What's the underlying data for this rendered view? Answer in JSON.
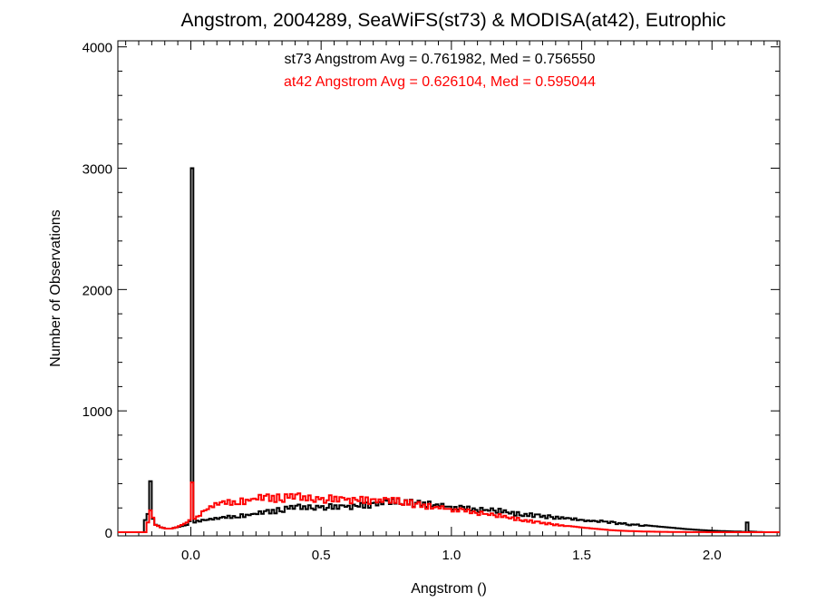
{
  "chart_data": {
    "type": "histogram",
    "title": "Angstrom, 2004289, SeaWiFS(st73) & MODISA(at42), Eutrophic",
    "xlabel": "Angstrom ()",
    "ylabel": "Number of Observations",
    "xlim": [
      -0.28,
      2.26
    ],
    "ylim": [
      -30,
      4050
    ],
    "xticks": [
      0.0,
      0.5,
      1.0,
      1.5,
      2.0
    ],
    "xtick_labels": [
      "0.0",
      "0.5",
      "1.0",
      "1.5",
      "2.0"
    ],
    "yticks": [
      0,
      1000,
      2000,
      3000,
      4000
    ],
    "ytick_labels": [
      "0",
      "1000",
      "2000",
      "3000",
      "4000"
    ],
    "annotations": [
      {
        "text": "st73 Angstrom Avg = 0.761982, Med = 0.756550",
        "color": "#000000"
      },
      {
        "text": "at42 Angstrom Avg = 0.626104, Med = 0.595044",
        "color": "#ff0000"
      }
    ],
    "series": [
      {
        "label": "st73",
        "color": "#000000",
        "bin_width": 0.01,
        "points": [
          [
            -0.18,
            100
          ],
          [
            -0.17,
            150
          ],
          [
            -0.16,
            420
          ],
          [
            -0.15,
            110
          ],
          [
            -0.14,
            70
          ],
          [
            -0.12,
            40
          ],
          [
            -0.1,
            30
          ],
          [
            -0.08,
            30
          ],
          [
            -0.06,
            40
          ],
          [
            -0.04,
            50
          ],
          [
            -0.02,
            60
          ],
          [
            -0.01,
            90
          ],
          [
            0.0,
            3000
          ],
          [
            0.01,
            90
          ],
          [
            0.05,
            110
          ],
          [
            0.1,
            120
          ],
          [
            0.15,
            140
          ],
          [
            0.2,
            150
          ],
          [
            0.25,
            160
          ],
          [
            0.3,
            180
          ],
          [
            0.35,
            200
          ],
          [
            0.4,
            215
          ],
          [
            0.45,
            220
          ],
          [
            0.5,
            225
          ],
          [
            0.55,
            220
          ],
          [
            0.6,
            225
          ],
          [
            0.65,
            235
          ],
          [
            0.7,
            250
          ],
          [
            0.75,
            260
          ],
          [
            0.8,
            265
          ],
          [
            0.85,
            255
          ],
          [
            0.9,
            250
          ],
          [
            0.95,
            235
          ],
          [
            1.0,
            220
          ],
          [
            1.05,
            205
          ],
          [
            1.1,
            200
          ],
          [
            1.15,
            190
          ],
          [
            1.2,
            180
          ],
          [
            1.25,
            160
          ],
          [
            1.3,
            150
          ],
          [
            1.35,
            140
          ],
          [
            1.4,
            130
          ],
          [
            1.45,
            120
          ],
          [
            1.5,
            105
          ],
          [
            1.55,
            100
          ],
          [
            1.6,
            90
          ],
          [
            1.65,
            75
          ],
          [
            1.7,
            65
          ],
          [
            1.75,
            55
          ],
          [
            1.8,
            45
          ],
          [
            1.85,
            35
          ],
          [
            1.9,
            25
          ],
          [
            1.95,
            18
          ],
          [
            2.0,
            12
          ],
          [
            2.05,
            8
          ],
          [
            2.1,
            5
          ],
          [
            2.12,
            3
          ],
          [
            2.13,
            80
          ],
          [
            2.14,
            5
          ],
          [
            2.2,
            0
          ]
        ]
      },
      {
        "label": "at42",
        "color": "#ff0000",
        "bin_width": 0.01,
        "points": [
          [
            -0.17,
            80
          ],
          [
            -0.16,
            180
          ],
          [
            -0.15,
            120
          ],
          [
            -0.14,
            60
          ],
          [
            -0.12,
            40
          ],
          [
            -0.1,
            30
          ],
          [
            -0.08,
            30
          ],
          [
            -0.06,
            40
          ],
          [
            -0.04,
            60
          ],
          [
            -0.02,
            80
          ],
          [
            -0.01,
            100
          ],
          [
            0.0,
            410
          ],
          [
            0.01,
            110
          ],
          [
            0.02,
            130
          ],
          [
            0.05,
            200
          ],
          [
            0.1,
            250
          ],
          [
            0.15,
            270
          ],
          [
            0.2,
            280
          ],
          [
            0.25,
            290
          ],
          [
            0.3,
            300
          ],
          [
            0.35,
            300
          ],
          [
            0.4,
            305
          ],
          [
            0.45,
            300
          ],
          [
            0.5,
            295
          ],
          [
            0.55,
            290
          ],
          [
            0.6,
            285
          ],
          [
            0.65,
            285
          ],
          [
            0.7,
            280
          ],
          [
            0.75,
            275
          ],
          [
            0.8,
            265
          ],
          [
            0.85,
            250
          ],
          [
            0.9,
            230
          ],
          [
            0.95,
            215
          ],
          [
            1.0,
            200
          ],
          [
            1.05,
            185
          ],
          [
            1.1,
            170
          ],
          [
            1.15,
            150
          ],
          [
            1.2,
            135
          ],
          [
            1.25,
            115
          ],
          [
            1.3,
            95
          ],
          [
            1.35,
            80
          ],
          [
            1.4,
            65
          ],
          [
            1.45,
            50
          ],
          [
            1.5,
            38
          ],
          [
            1.55,
            28
          ],
          [
            1.6,
            18
          ],
          [
            1.65,
            12
          ],
          [
            1.7,
            8
          ],
          [
            1.75,
            5
          ],
          [
            1.8,
            3
          ],
          [
            1.9,
            1
          ],
          [
            2.0,
            0
          ],
          [
            2.2,
            0
          ]
        ]
      }
    ]
  }
}
